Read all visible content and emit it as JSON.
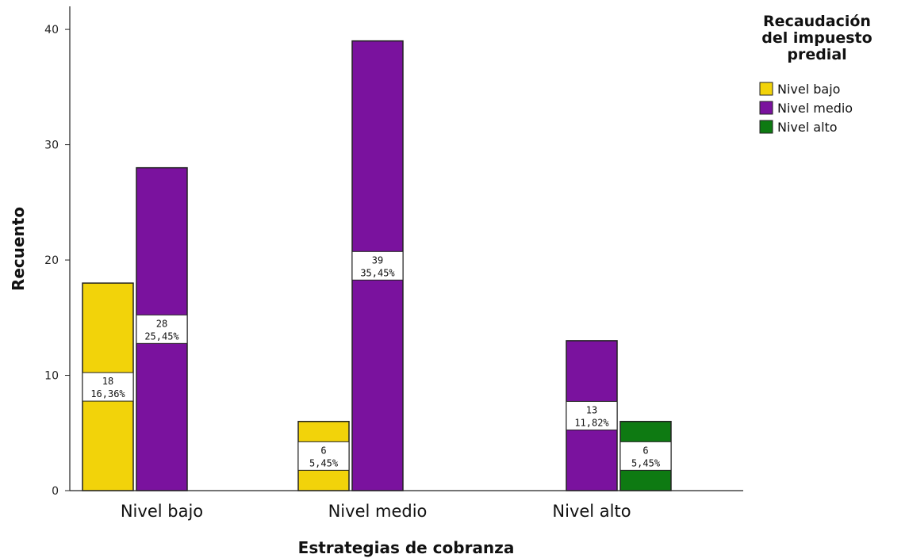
{
  "chart_data": {
    "type": "bar",
    "title": "",
    "xlabel": "Estrategias de cobranza",
    "ylabel": "Recuento",
    "ylim": [
      0,
      42
    ],
    "yticks": [
      0,
      10,
      20,
      30,
      40
    ],
    "grid": false,
    "categories": [
      "Nivel bajo",
      "Nivel medio",
      "Nivel alto"
    ],
    "legend": {
      "title": [
        "Recaudación",
        "del impuesto",
        "predial"
      ],
      "placement": "top-right"
    },
    "series": [
      {
        "name": "Nivel bajo",
        "color": "#f2d30a",
        "values": [
          18,
          6,
          null
        ],
        "labels": [
          [
            "18",
            "16,36%"
          ],
          [
            "6",
            "5,45%"
          ],
          null
        ]
      },
      {
        "name": "Nivel medio",
        "color": "#7a129e",
        "values": [
          28,
          39,
          13
        ],
        "labels": [
          [
            "28",
            "25,45%"
          ],
          [
            "39",
            "35,45%"
          ],
          [
            "13",
            "11,82%"
          ]
        ]
      },
      {
        "name": "Nivel alto",
        "color": "#0e7a12",
        "values": [
          null,
          null,
          6
        ],
        "labels": [
          null,
          null,
          [
            "6",
            "5,45%"
          ]
        ]
      }
    ]
  }
}
